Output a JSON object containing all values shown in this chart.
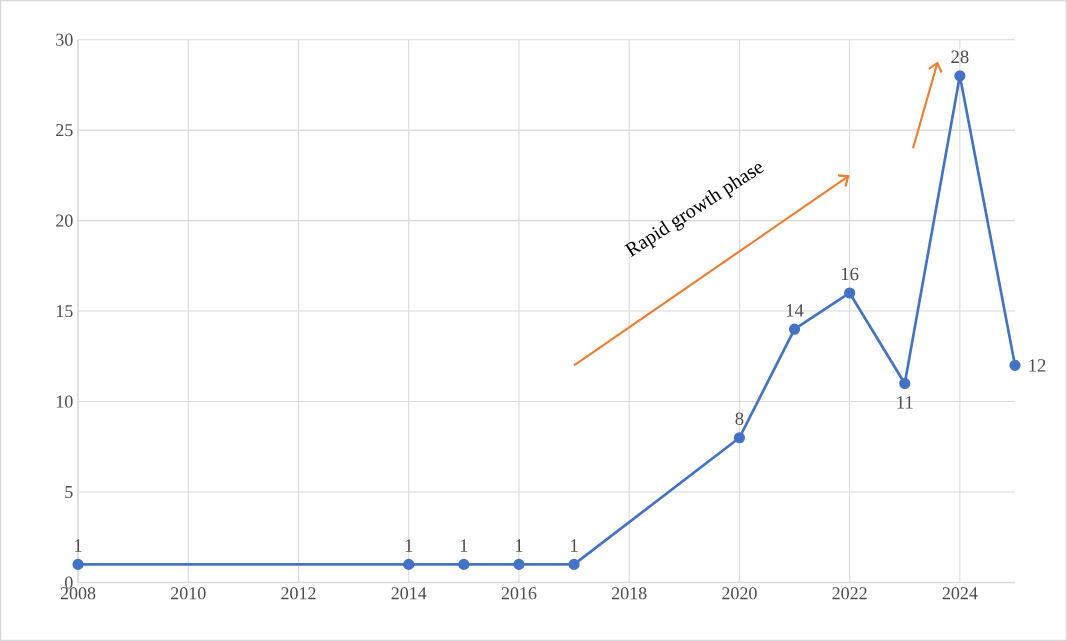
{
  "chart_data": {
    "type": "line",
    "x": [
      2008,
      2014,
      2015,
      2016,
      2017,
      2020,
      2021,
      2022,
      2023,
      2024,
      2025
    ],
    "values": [
      1,
      1,
      1,
      1,
      1,
      8,
      14,
      16,
      11,
      28,
      12
    ],
    "color": "#4472c4",
    "marker": "circle",
    "line_style": "solid",
    "data_labels": true,
    "xlim": [
      2008,
      2025
    ],
    "xticks": [
      2008,
      2010,
      2012,
      2014,
      2016,
      2018,
      2020,
      2022,
      2024
    ],
    "ylim": [
      0,
      30
    ],
    "yticks": [
      0,
      5,
      10,
      15,
      20,
      25,
      30
    ],
    "grid": true,
    "annotations": [
      "Rapid growth phase"
    ]
  }
}
